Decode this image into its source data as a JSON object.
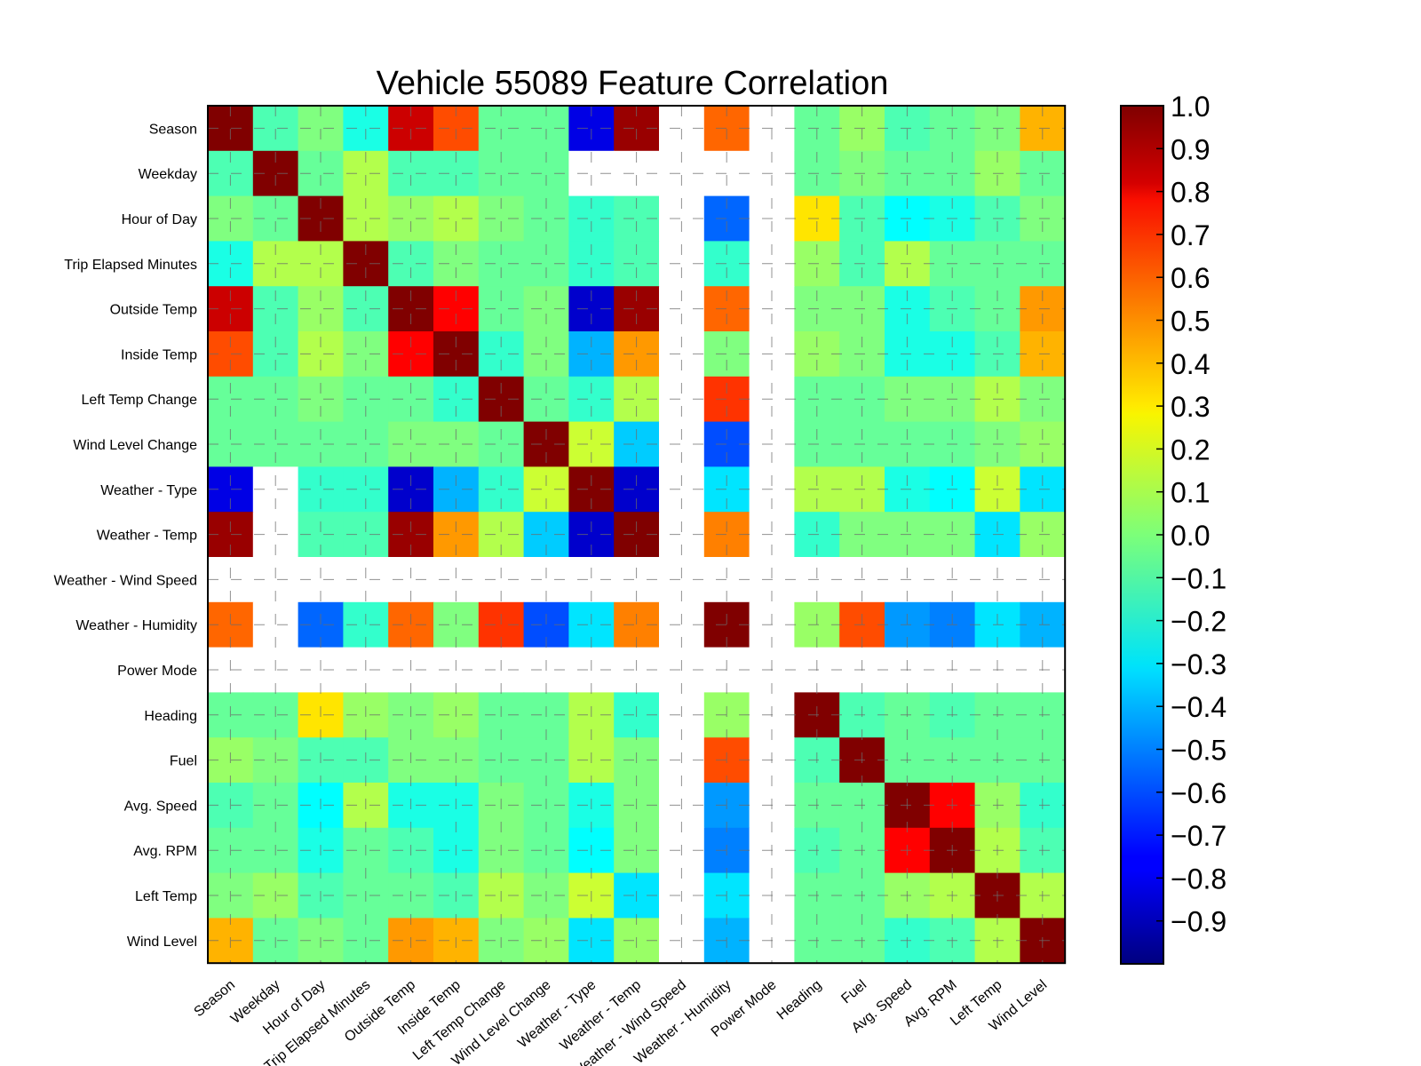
{
  "chart_data": {
    "type": "heatmap",
    "title": "Vehicle 55089 Feature Correlation",
    "labels": [
      "Season",
      "Weekday",
      "Hour of Day",
      "Trip Elapsed Minutes",
      "Outside Temp",
      "Inside Temp",
      "Left Temp Change",
      "Wind Level Change",
      "Weather - Type",
      "Weather - Temp",
      "Weather - Wind Speed",
      "Weather - Humidity",
      "Power Mode",
      "Heading",
      "Fuel",
      "Avg. Speed",
      "Avg. RPM",
      "Left Temp",
      "Wind Level"
    ],
    "matrix": [
      [
        1.0,
        -0.1,
        0.0,
        -0.2,
        0.85,
        0.6,
        -0.05,
        -0.05,
        -0.8,
        0.95,
        null,
        0.55,
        null,
        -0.05,
        0.05,
        -0.1,
        -0.05,
        0.0,
        0.4
      ],
      [
        -0.1,
        1.0,
        -0.05,
        0.1,
        -0.1,
        -0.1,
        -0.05,
        -0.05,
        null,
        null,
        null,
        null,
        null,
        -0.05,
        0.0,
        -0.05,
        -0.05,
        0.05,
        -0.05
      ],
      [
        0.0,
        -0.05,
        1.0,
        0.1,
        0.05,
        0.1,
        0.0,
        -0.05,
        -0.15,
        -0.1,
        null,
        -0.55,
        null,
        0.3,
        -0.1,
        -0.25,
        -0.2,
        -0.1,
        0.0
      ],
      [
        -0.2,
        0.1,
        0.1,
        1.0,
        -0.1,
        0.0,
        -0.05,
        -0.05,
        -0.15,
        -0.1,
        null,
        -0.15,
        null,
        0.05,
        -0.1,
        0.1,
        -0.05,
        -0.05,
        -0.05
      ],
      [
        0.85,
        -0.1,
        0.05,
        -0.1,
        1.0,
        0.75,
        -0.05,
        0.0,
        -0.85,
        0.95,
        null,
        0.55,
        null,
        0.0,
        0.0,
        -0.2,
        -0.1,
        -0.05,
        0.45
      ],
      [
        0.6,
        -0.1,
        0.1,
        0.0,
        0.75,
        1.0,
        -0.15,
        0.0,
        -0.4,
        0.45,
        null,
        0.0,
        null,
        0.05,
        0.0,
        -0.2,
        -0.2,
        -0.1,
        0.4
      ],
      [
        -0.05,
        -0.05,
        0.0,
        -0.05,
        -0.05,
        -0.15,
        1.0,
        -0.05,
        -0.15,
        0.1,
        null,
        0.65,
        null,
        -0.05,
        -0.05,
        0.0,
        0.0,
        0.1,
        0.0
      ],
      [
        -0.05,
        -0.05,
        -0.05,
        -0.05,
        0.0,
        0.0,
        -0.05,
        1.0,
        0.15,
        -0.35,
        null,
        -0.6,
        null,
        -0.05,
        -0.05,
        -0.05,
        -0.05,
        0.0,
        0.05
      ],
      [
        -0.8,
        null,
        -0.15,
        -0.15,
        -0.85,
        -0.4,
        -0.15,
        0.15,
        1.0,
        -0.85,
        null,
        -0.3,
        null,
        0.1,
        0.1,
        -0.2,
        -0.25,
        0.15,
        -0.3
      ],
      [
        0.95,
        null,
        -0.1,
        -0.1,
        0.95,
        0.45,
        0.1,
        -0.35,
        -0.85,
        1.0,
        null,
        0.5,
        null,
        -0.15,
        0.0,
        0.0,
        0.0,
        -0.3,
        0.05
      ],
      [
        null,
        null,
        null,
        null,
        null,
        null,
        null,
        null,
        null,
        null,
        null,
        null,
        null,
        null,
        null,
        null,
        null,
        null,
        null
      ],
      [
        0.55,
        null,
        -0.55,
        -0.15,
        0.55,
        0.0,
        0.65,
        -0.6,
        -0.3,
        0.5,
        null,
        1.0,
        null,
        0.05,
        0.6,
        -0.45,
        -0.5,
        -0.3,
        -0.4
      ],
      [
        null,
        null,
        null,
        null,
        null,
        null,
        null,
        null,
        null,
        null,
        null,
        null,
        null,
        null,
        null,
        null,
        null,
        null,
        null
      ],
      [
        -0.05,
        -0.05,
        0.3,
        0.05,
        0.0,
        0.05,
        -0.05,
        -0.05,
        0.1,
        -0.15,
        null,
        0.05,
        null,
        1.0,
        -0.1,
        -0.05,
        -0.1,
        -0.05,
        -0.05
      ],
      [
        0.05,
        0.0,
        -0.1,
        -0.1,
        0.0,
        0.0,
        -0.05,
        -0.05,
        0.1,
        0.0,
        null,
        0.6,
        null,
        -0.1,
        1.0,
        -0.05,
        -0.05,
        -0.05,
        -0.05
      ],
      [
        -0.1,
        -0.05,
        -0.25,
        0.1,
        -0.2,
        -0.2,
        0.0,
        -0.05,
        -0.2,
        0.0,
        null,
        -0.45,
        null,
        -0.05,
        -0.05,
        1.0,
        0.75,
        0.05,
        -0.15
      ],
      [
        -0.05,
        -0.05,
        -0.2,
        -0.05,
        -0.1,
        -0.2,
        0.0,
        -0.05,
        -0.25,
        0.0,
        null,
        -0.5,
        null,
        -0.1,
        -0.05,
        0.75,
        1.0,
        0.1,
        -0.1
      ],
      [
        0.0,
        0.05,
        -0.1,
        -0.05,
        -0.05,
        -0.1,
        0.1,
        0.0,
        0.15,
        -0.3,
        null,
        -0.3,
        null,
        -0.05,
        -0.05,
        0.05,
        0.1,
        1.0,
        0.1
      ],
      [
        0.4,
        -0.05,
        0.0,
        -0.05,
        0.45,
        0.4,
        0.0,
        0.05,
        -0.3,
        0.05,
        null,
        -0.4,
        null,
        -0.05,
        -0.05,
        -0.15,
        -0.1,
        0.1,
        1.0
      ]
    ],
    "colorbar": {
      "min": -1.0,
      "max": 1.0,
      "ticks": [
        1.0,
        0.9,
        0.8,
        0.7,
        0.6,
        0.5,
        0.4,
        0.3,
        0.2,
        0.1,
        0.0,
        -0.1,
        -0.2,
        -0.3,
        -0.4,
        -0.5,
        -0.6,
        -0.7,
        -0.8,
        -0.9
      ],
      "tick_labels": [
        "1.0",
        "0.9",
        "0.8",
        "0.7",
        "0.6",
        "0.5",
        "0.4",
        "0.3",
        "0.2",
        "0.1",
        "0.0",
        "−0.1",
        "−0.2",
        "−0.3",
        "−0.4",
        "−0.5",
        "−0.6",
        "−0.7",
        "−0.8",
        "−0.9"
      ],
      "colormap": "jet"
    },
    "grid": true,
    "missing_color": "#ffffff"
  }
}
